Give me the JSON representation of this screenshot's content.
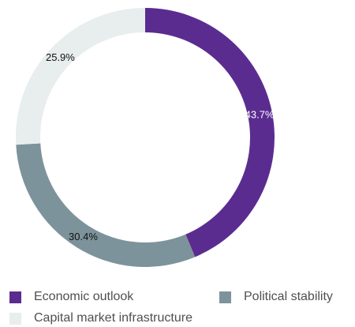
{
  "chart_data": {
    "type": "pie",
    "donut": true,
    "categories": [
      "Economic outlook",
      "Political stability",
      "Capital market infrastructure"
    ],
    "values": [
      43.7,
      30.4,
      25.9
    ],
    "value_labels": [
      "43.7%",
      "30.4%",
      "25.9%"
    ],
    "unit": "%",
    "colors": [
      "#5b2c90",
      "#7d939b",
      "#e8edee"
    ],
    "label_colors": [
      "#ffffff",
      "#111111",
      "#111111"
    ],
    "start_angle_deg": 0,
    "direction": "clockwise",
    "legend_position": "bottom",
    "title": ""
  }
}
